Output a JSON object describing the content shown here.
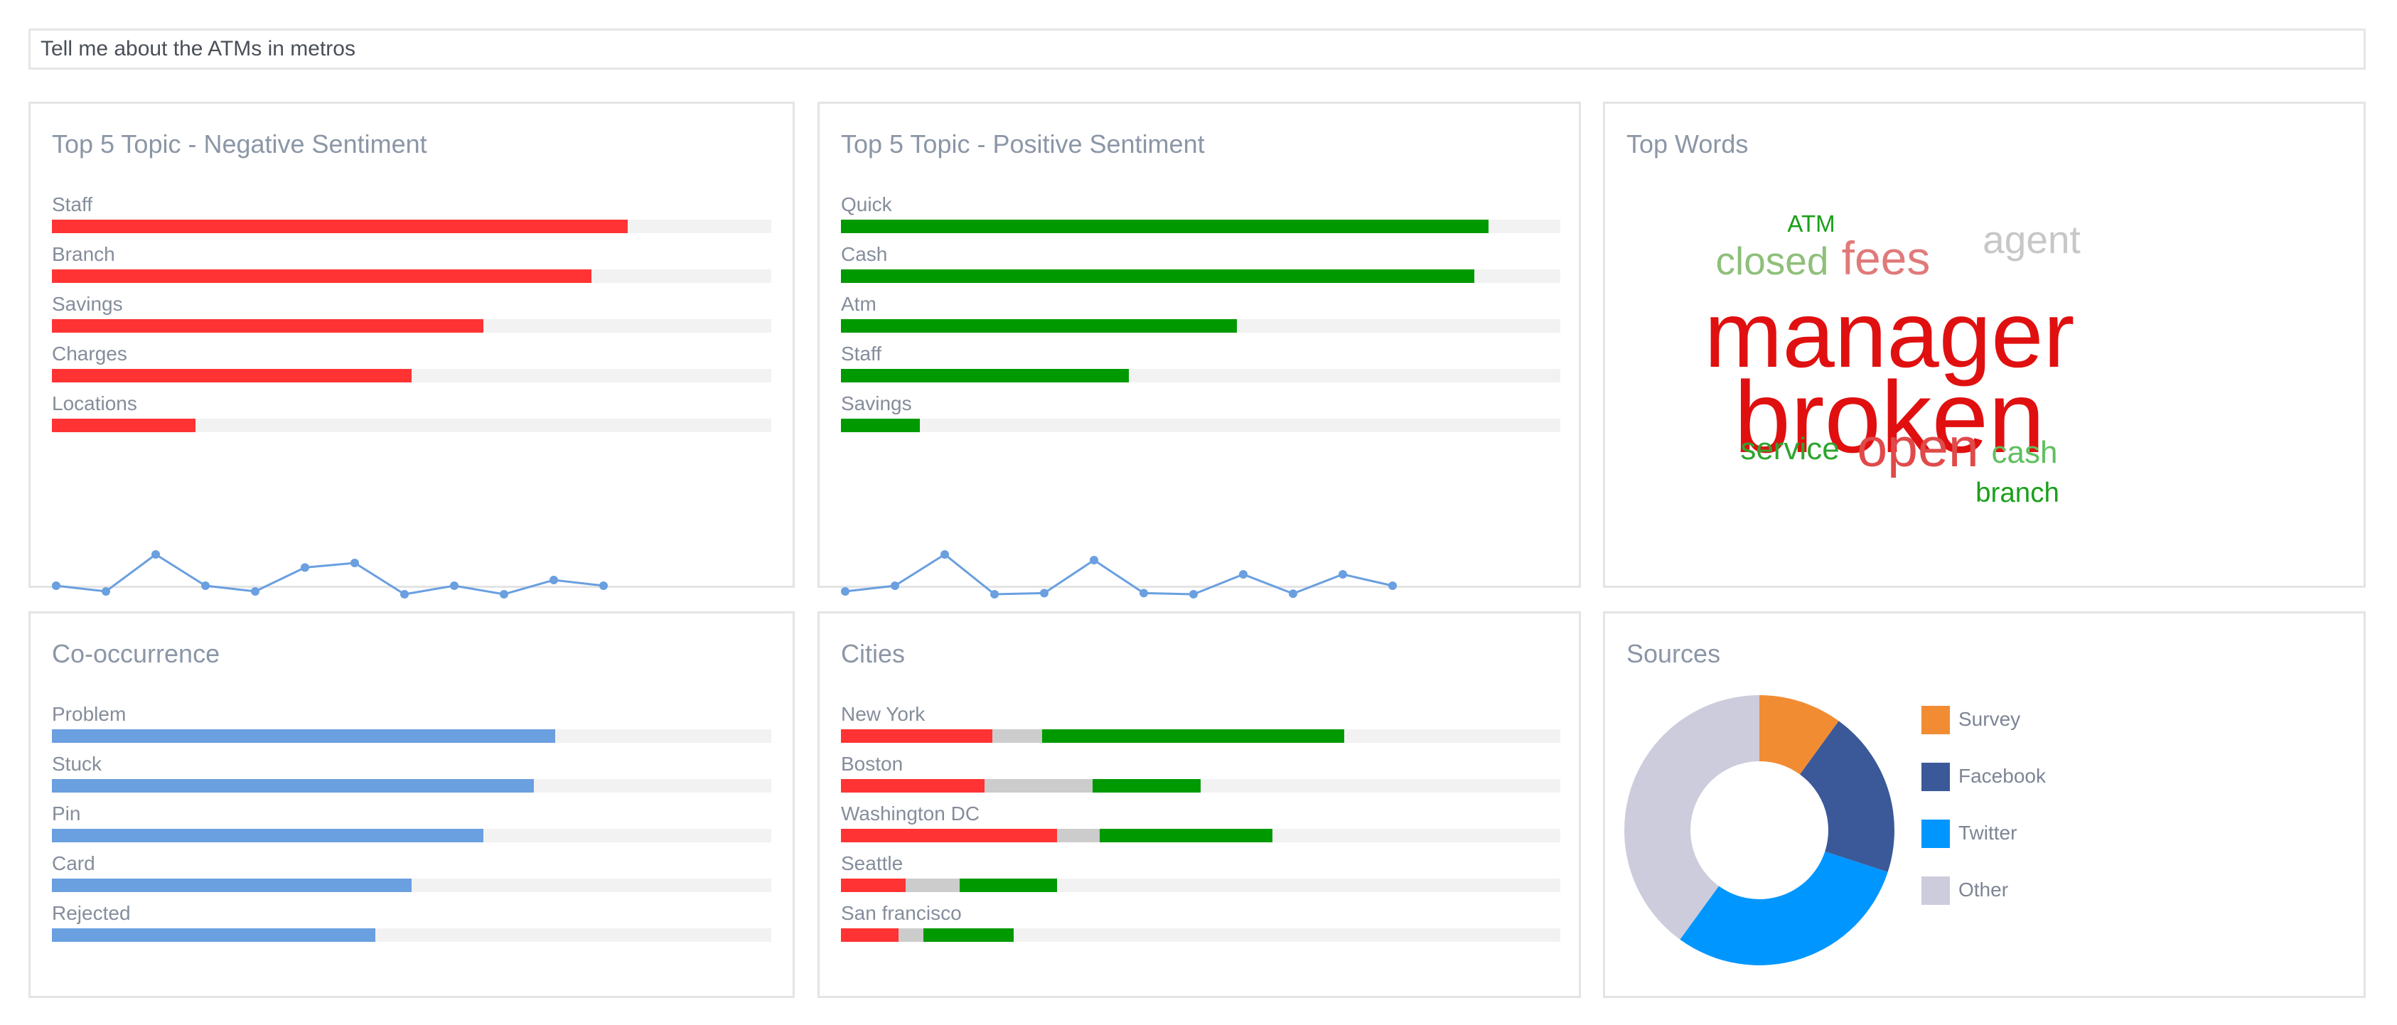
{
  "query": "Tell me about the ATMs in metros",
  "colors": {
    "negative": "#ff3333",
    "positive": "#009900",
    "neutral": "#cccccc",
    "cooccurrence": "#6a9fe0",
    "sparkline": "#6a9fe0"
  },
  "chart_data": [
    {
      "type": "bar",
      "orientation": "horizontal",
      "title": "Top 5 Topic - Negative Sentiment",
      "categories": [
        "Staff",
        "Branch",
        "Savings",
        "Charges",
        "Locations"
      ],
      "values": [
        0.8,
        0.75,
        0.6,
        0.5,
        0.2
      ],
      "xlim": [
        0,
        1
      ],
      "color": "#ff3333",
      "sparkline": [
        0.4,
        0.3,
        0.95,
        0.4,
        0.3,
        0.72,
        0.8,
        0.25,
        0.4,
        0.25,
        0.5,
        0.4
      ]
    },
    {
      "type": "bar",
      "orientation": "horizontal",
      "title": "Top 5 Topic - Positive Sentiment",
      "categories": [
        "Quick",
        "Cash",
        "Atm",
        "Staff",
        "Savings"
      ],
      "values": [
        0.9,
        0.88,
        0.55,
        0.4,
        0.11
      ],
      "xlim": [
        0,
        1
      ],
      "color": "#009900",
      "sparkline": [
        0.3,
        0.4,
        0.95,
        0.25,
        0.27,
        0.85,
        0.27,
        0.25,
        0.6,
        0.26,
        0.6,
        0.4
      ]
    },
    {
      "type": "wordcloud",
      "title": "Top Words",
      "words": [
        {
          "text": "ATM",
          "weight": 1,
          "color": "#1a9e1a"
        },
        {
          "text": "closed",
          "weight": 3,
          "color": "#8fbf7a"
        },
        {
          "text": "fees",
          "weight": 4,
          "color": "#e07a7a"
        },
        {
          "text": "agent",
          "weight": 3,
          "color": "#c7c7c7"
        },
        {
          "text": "manager",
          "weight": 10,
          "color": "#e01010"
        },
        {
          "text": "broken",
          "weight": 11,
          "color": "#e01010"
        },
        {
          "text": "service",
          "weight": 2,
          "color": "#2ea52e"
        },
        {
          "text": "open",
          "weight": 5,
          "color": "#e04a4a"
        },
        {
          "text": "cash",
          "weight": 2,
          "color": "#5fbf5f"
        },
        {
          "text": "branch",
          "weight": 1.5,
          "color": "#1aa01a"
        }
      ]
    },
    {
      "type": "bar",
      "orientation": "horizontal",
      "title": "Co-occurrence",
      "categories": [
        "Problem",
        "Stuck",
        "Pin",
        "Card",
        "Rejected"
      ],
      "values": [
        0.7,
        0.67,
        0.6,
        0.5,
        0.45
      ],
      "xlim": [
        0,
        1
      ],
      "color": "#6a9fe0"
    },
    {
      "type": "bar",
      "orientation": "horizontal",
      "stacked": true,
      "title": "Cities",
      "categories": [
        "New York",
        "Boston",
        "Washington DC",
        "Seattle",
        "San francisco"
      ],
      "series": [
        {
          "values": [
            0.21,
            0.2,
            0.3,
            0.09,
            0.08
          ],
          "color": "#ff3333"
        },
        {
          "values": [
            0.07,
            0.15,
            0.06,
            0.075,
            0.035
          ],
          "color": "#cccccc"
        },
        {
          "values": [
            0.42,
            0.15,
            0.24,
            0.135,
            0.125
          ],
          "color": "#009900"
        }
      ],
      "xlim": [
        0,
        1
      ]
    },
    {
      "type": "pie",
      "donut": true,
      "title": "Sources",
      "categories": [
        "Survey",
        "Facebook",
        "Twitter",
        "Other"
      ],
      "values": [
        10,
        20,
        30,
        40
      ],
      "colors": [
        "#f28c33",
        "#3b5998",
        "#0096ff",
        "#ccccdc"
      ]
    }
  ]
}
